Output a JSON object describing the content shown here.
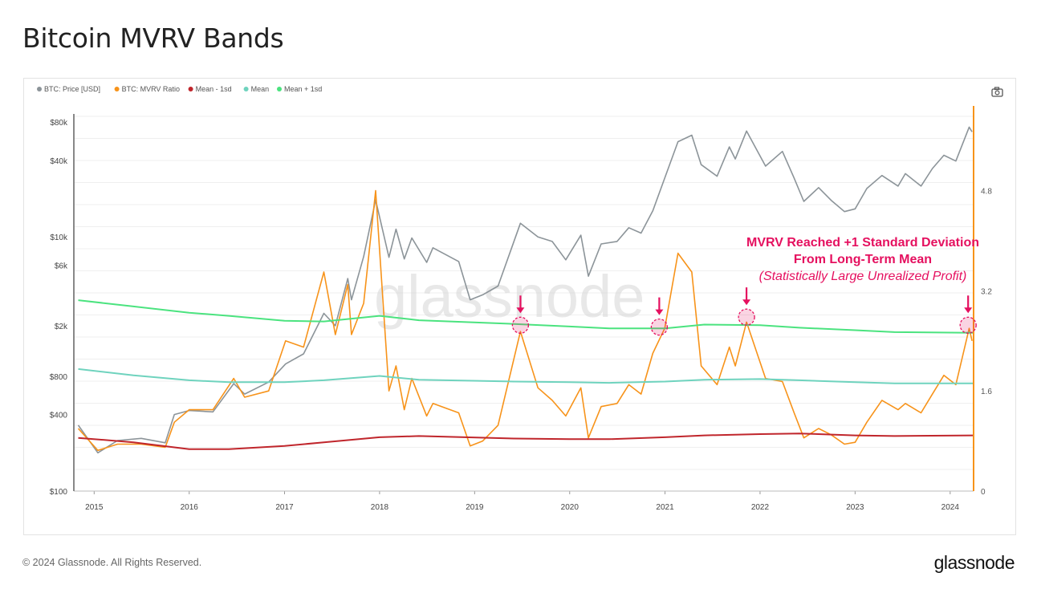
{
  "page": {
    "title": "Bitcoin MVRV Bands",
    "footer_copyright": "© 2024 Glassnode. All Rights Reserved.",
    "footer_logo": "glassnode",
    "watermark": "glassnode"
  },
  "colors": {
    "price": "#8c9499",
    "mvrv": "#f7931a",
    "mean_minus_1sd": "#c0262c",
    "mean": "#6fd3be",
    "mean_plus_1sd": "#4be37f",
    "annotation": "#e5105f",
    "right_axis": "#f7931a",
    "left_axis": "#888888"
  },
  "icons": {
    "camera": "camera-icon"
  },
  "chart_data": {
    "type": "line",
    "title": "Bitcoin MVRV Bands",
    "legend": {
      "placement": "top-left",
      "items": [
        "BTC: Price [USD]",
        "BTC: MVRV Ratio",
        "Mean - 1sd",
        "Mean",
        "Mean + 1sd"
      ]
    },
    "x_axis": {
      "type": "date",
      "range": [
        "2014-10-15",
        "2024-03-31"
      ],
      "tick_labels": [
        "2015",
        "2016",
        "2017",
        "2018",
        "2019",
        "2020",
        "2021",
        "2022",
        "2023",
        "2024"
      ]
    },
    "y_axis_left": {
      "scale": "log",
      "range": [
        100,
        90000
      ],
      "ticks": [
        100,
        400,
        800,
        2000,
        6000,
        10000,
        40000,
        80000
      ],
      "tick_labels": [
        "$100",
        "$400",
        "$800",
        "$2k",
        "$6k",
        "$10k",
        "$40k",
        "$80k"
      ]
    },
    "y_axis_right": {
      "scale": "linear",
      "range": [
        0,
        6.0
      ],
      "ticks": [
        0,
        1.6,
        3.2,
        4.8
      ],
      "tick_labels": [
        "0",
        "1.6",
        "3.2",
        "4.8"
      ]
    },
    "grid": true,
    "series": [
      {
        "name": "BTC: Price [USD]",
        "axis": "left",
        "points": [
          [
            "2014-11-01",
            330
          ],
          [
            "2015-01-15",
            200
          ],
          [
            "2015-04-01",
            250
          ],
          [
            "2015-07-01",
            260
          ],
          [
            "2015-10-01",
            240
          ],
          [
            "2015-11-05",
            400
          ],
          [
            "2016-01-01",
            430
          ],
          [
            "2016-04-01",
            420
          ],
          [
            "2016-06-20",
            700
          ],
          [
            "2016-08-01",
            580
          ],
          [
            "2016-11-01",
            720
          ],
          [
            "2017-01-05",
            1000
          ],
          [
            "2017-03-15",
            1200
          ],
          [
            "2017-06-01",
            2500
          ],
          [
            "2017-07-15",
            2000
          ],
          [
            "2017-09-01",
            4700
          ],
          [
            "2017-09-15",
            3200
          ],
          [
            "2017-11-01",
            7000
          ],
          [
            "2017-12-17",
            19500
          ],
          [
            "2018-02-06",
            6900
          ],
          [
            "2018-03-05",
            11500
          ],
          [
            "2018-04-06",
            6700
          ],
          [
            "2018-05-05",
            9800
          ],
          [
            "2018-07-01",
            6300
          ],
          [
            "2018-07-25",
            8200
          ],
          [
            "2018-11-01",
            6400
          ],
          [
            "2018-12-15",
            3200
          ],
          [
            "2019-02-01",
            3500
          ],
          [
            "2019-04-01",
            4100
          ],
          [
            "2019-06-26",
            12800
          ],
          [
            "2019-09-01",
            10000
          ],
          [
            "2019-10-26",
            9200
          ],
          [
            "2019-12-17",
            6600
          ],
          [
            "2020-02-13",
            10300
          ],
          [
            "2020-03-13",
            4900
          ],
          [
            "2020-05-01",
            8800
          ],
          [
            "2020-07-01",
            9200
          ],
          [
            "2020-08-15",
            11800
          ],
          [
            "2020-10-01",
            10700
          ],
          [
            "2020-11-15",
            16000
          ],
          [
            "2020-12-31",
            29000
          ],
          [
            "2021-02-20",
            56000
          ],
          [
            "2021-04-14",
            63000
          ],
          [
            "2021-05-20",
            37000
          ],
          [
            "2021-07-20",
            30000
          ],
          [
            "2021-09-05",
            51000
          ],
          [
            "2021-09-28",
            41000
          ],
          [
            "2021-11-10",
            68000
          ],
          [
            "2022-01-22",
            36000
          ],
          [
            "2022-03-28",
            47000
          ],
          [
            "2022-05-12",
            29000
          ],
          [
            "2022-06-18",
            19000
          ],
          [
            "2022-08-14",
            24400
          ],
          [
            "2022-10-01",
            19400
          ],
          [
            "2022-11-21",
            15800
          ],
          [
            "2023-01-01",
            16600
          ],
          [
            "2023-02-15",
            24000
          ],
          [
            "2023-04-14",
            30400
          ],
          [
            "2023-06-15",
            25100
          ],
          [
            "2023-07-13",
            31400
          ],
          [
            "2023-09-11",
            25100
          ],
          [
            "2023-10-25",
            34500
          ],
          [
            "2023-12-08",
            43800
          ],
          [
            "2024-01-23",
            39500
          ],
          [
            "2024-03-14",
            73000
          ],
          [
            "2024-03-25",
            67000
          ]
        ]
      },
      {
        "name": "BTC: MVRV Ratio",
        "axis": "right",
        "points": [
          [
            "2014-11-01",
            1.0
          ],
          [
            "2015-01-15",
            0.65
          ],
          [
            "2015-04-01",
            0.75
          ],
          [
            "2015-07-01",
            0.75
          ],
          [
            "2015-10-01",
            0.7
          ],
          [
            "2015-11-05",
            1.1
          ],
          [
            "2016-01-01",
            1.3
          ],
          [
            "2016-04-01",
            1.3
          ],
          [
            "2016-06-20",
            1.8
          ],
          [
            "2016-08-01",
            1.5
          ],
          [
            "2016-11-01",
            1.6
          ],
          [
            "2017-01-05",
            2.4
          ],
          [
            "2017-03-15",
            2.3
          ],
          [
            "2017-06-01",
            3.5
          ],
          [
            "2017-07-15",
            2.5
          ],
          [
            "2017-09-01",
            3.3
          ],
          [
            "2017-09-15",
            2.5
          ],
          [
            "2017-11-01",
            3.0
          ],
          [
            "2017-12-17",
            4.8
          ],
          [
            "2018-02-06",
            1.6
          ],
          [
            "2018-03-05",
            2.0
          ],
          [
            "2018-04-06",
            1.3
          ],
          [
            "2018-05-05",
            1.8
          ],
          [
            "2018-07-01",
            1.2
          ],
          [
            "2018-07-25",
            1.4
          ],
          [
            "2018-11-01",
            1.25
          ],
          [
            "2018-12-15",
            0.72
          ],
          [
            "2019-02-01",
            0.8
          ],
          [
            "2019-04-01",
            1.05
          ],
          [
            "2019-06-26",
            2.55
          ],
          [
            "2019-09-01",
            1.65
          ],
          [
            "2019-10-26",
            1.45
          ],
          [
            "2019-12-17",
            1.2
          ],
          [
            "2020-02-13",
            1.65
          ],
          [
            "2020-03-13",
            0.85
          ],
          [
            "2020-05-01",
            1.35
          ],
          [
            "2020-07-01",
            1.4
          ],
          [
            "2020-08-15",
            1.7
          ],
          [
            "2020-10-01",
            1.55
          ],
          [
            "2020-11-15",
            2.2
          ],
          [
            "2020-12-31",
            2.6
          ],
          [
            "2021-02-20",
            3.8
          ],
          [
            "2021-04-14",
            3.5
          ],
          [
            "2021-05-20",
            2.0
          ],
          [
            "2021-07-20",
            1.7
          ],
          [
            "2021-09-05",
            2.3
          ],
          [
            "2021-09-28",
            2.0
          ],
          [
            "2021-11-10",
            2.7
          ],
          [
            "2022-01-22",
            1.8
          ],
          [
            "2022-03-28",
            1.75
          ],
          [
            "2022-05-12",
            1.25
          ],
          [
            "2022-06-18",
            0.85
          ],
          [
            "2022-08-14",
            1.0
          ],
          [
            "2022-10-01",
            0.9
          ],
          [
            "2022-11-21",
            0.75
          ],
          [
            "2023-01-01",
            0.78
          ],
          [
            "2023-02-15",
            1.1
          ],
          [
            "2023-04-14",
            1.45
          ],
          [
            "2023-06-15",
            1.3
          ],
          [
            "2023-07-13",
            1.4
          ],
          [
            "2023-09-11",
            1.25
          ],
          [
            "2023-10-25",
            1.55
          ],
          [
            "2023-12-08",
            1.85
          ],
          [
            "2024-01-23",
            1.7
          ],
          [
            "2024-03-14",
            2.6
          ],
          [
            "2024-03-25",
            2.4
          ]
        ]
      },
      {
        "name": "Mean - 1sd",
        "axis": "right",
        "points": [
          [
            "2014-11-01",
            0.85
          ],
          [
            "2015-06-01",
            0.78
          ],
          [
            "2016-01-01",
            0.67
          ],
          [
            "2016-06-01",
            0.67
          ],
          [
            "2017-01-01",
            0.72
          ],
          [
            "2017-06-01",
            0.78
          ],
          [
            "2018-01-01",
            0.86
          ],
          [
            "2018-06-01",
            0.88
          ],
          [
            "2019-06-01",
            0.84
          ],
          [
            "2020-01-01",
            0.83
          ],
          [
            "2020-06-01",
            0.83
          ],
          [
            "2021-01-01",
            0.86
          ],
          [
            "2021-06-01",
            0.89
          ],
          [
            "2022-01-01",
            0.91
          ],
          [
            "2022-06-01",
            0.92
          ],
          [
            "2023-01-01",
            0.89
          ],
          [
            "2023-06-01",
            0.88
          ],
          [
            "2024-03-31",
            0.89
          ]
        ]
      },
      {
        "name": "Mean",
        "axis": "right",
        "points": [
          [
            "2014-11-01",
            1.95
          ],
          [
            "2015-06-01",
            1.85
          ],
          [
            "2016-01-01",
            1.77
          ],
          [
            "2016-06-01",
            1.74
          ],
          [
            "2017-01-01",
            1.74
          ],
          [
            "2017-06-01",
            1.77
          ],
          [
            "2018-01-01",
            1.84
          ],
          [
            "2018-06-01",
            1.78
          ],
          [
            "2019-06-01",
            1.75
          ],
          [
            "2020-01-01",
            1.74
          ],
          [
            "2020-06-01",
            1.73
          ],
          [
            "2021-01-01",
            1.75
          ],
          [
            "2021-06-01",
            1.78
          ],
          [
            "2022-01-01",
            1.79
          ],
          [
            "2022-06-01",
            1.77
          ],
          [
            "2023-01-01",
            1.74
          ],
          [
            "2023-06-01",
            1.72
          ],
          [
            "2024-03-31",
            1.72
          ]
        ]
      },
      {
        "name": "Mean + 1sd",
        "axis": "right",
        "points": [
          [
            "2014-11-01",
            3.05
          ],
          [
            "2015-06-01",
            2.95
          ],
          [
            "2016-01-01",
            2.85
          ],
          [
            "2016-06-01",
            2.8
          ],
          [
            "2017-01-01",
            2.72
          ],
          [
            "2017-06-01",
            2.71
          ],
          [
            "2018-01-01",
            2.8
          ],
          [
            "2018-06-01",
            2.73
          ],
          [
            "2019-06-01",
            2.67
          ],
          [
            "2020-01-01",
            2.63
          ],
          [
            "2020-06-01",
            2.6
          ],
          [
            "2021-01-01",
            2.6
          ],
          [
            "2021-06-01",
            2.66
          ],
          [
            "2022-01-01",
            2.65
          ],
          [
            "2022-06-01",
            2.61
          ],
          [
            "2023-01-01",
            2.57
          ],
          [
            "2023-06-01",
            2.54
          ],
          [
            "2024-03-31",
            2.53
          ]
        ]
      }
    ],
    "annotations": {
      "text_lines": [
        "MVRV Reached +1 Standard Deviation",
        "From Long-Term Mean",
        "(Statistically Large Unrealized Profit)"
      ],
      "markers": [
        {
          "x": "2019-06-26",
          "y": 2.65
        },
        {
          "x": "2020-12-10",
          "y": 2.62
        },
        {
          "x": "2021-11-10",
          "y": 2.78
        },
        {
          "x": "2024-03-10",
          "y": 2.65
        }
      ]
    }
  }
}
